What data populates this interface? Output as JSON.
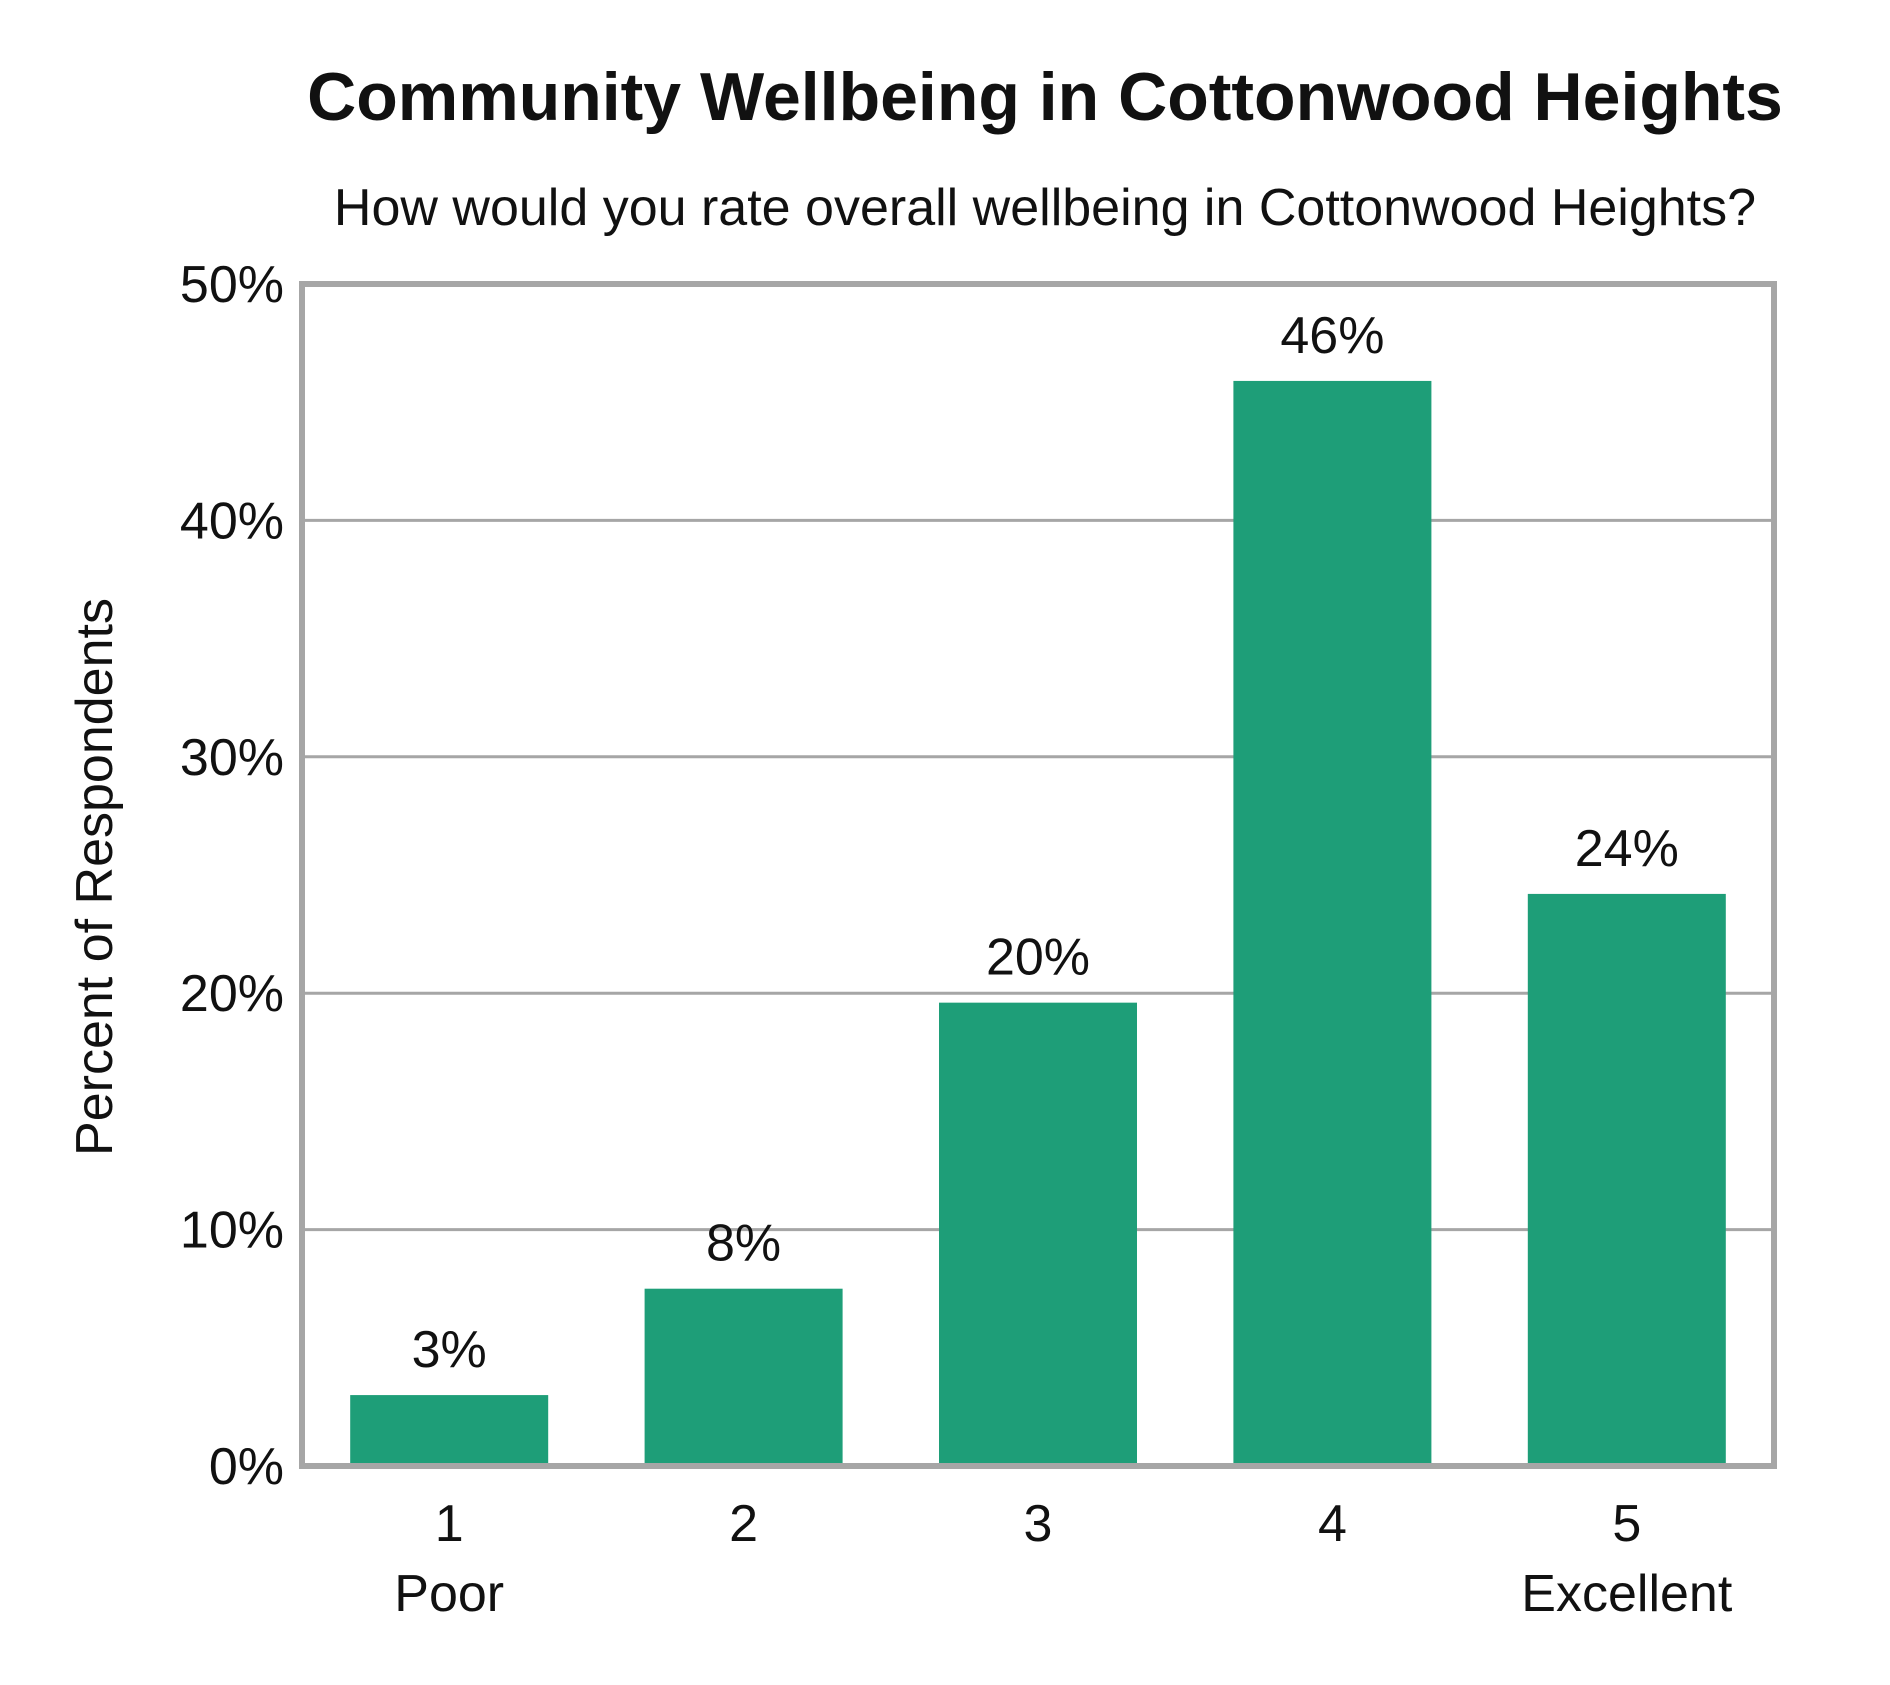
{
  "chart_data": {
    "type": "bar",
    "title": "Community Wellbeing in Cottonwood Heights",
    "subtitle": "How would you rate overall wellbeing in Cottonwood Heights?",
    "ylabel": "Percent of Respondents",
    "xlabel": "",
    "ylim": [
      0,
      50
    ],
    "yticks": [
      "0%",
      "10%",
      "20%",
      "30%",
      "40%",
      "50%"
    ],
    "ytick_values": [
      0,
      10,
      20,
      30,
      40,
      50
    ],
    "categories": [
      "1",
      "2",
      "3",
      "4",
      "5"
    ],
    "category_sublabels": [
      "Poor",
      "",
      "",
      "",
      "Excellent"
    ],
    "values": [
      3,
      7.5,
      19.6,
      45.9,
      24.2
    ],
    "data_labels": [
      "3%",
      "8%",
      "20%",
      "46%",
      "24%"
    ],
    "grid": true,
    "legend": "none",
    "bar_color": "#1e9e78",
    "grid_color": "#a6a6a6",
    "frame_color": "#a6a6a6"
  }
}
